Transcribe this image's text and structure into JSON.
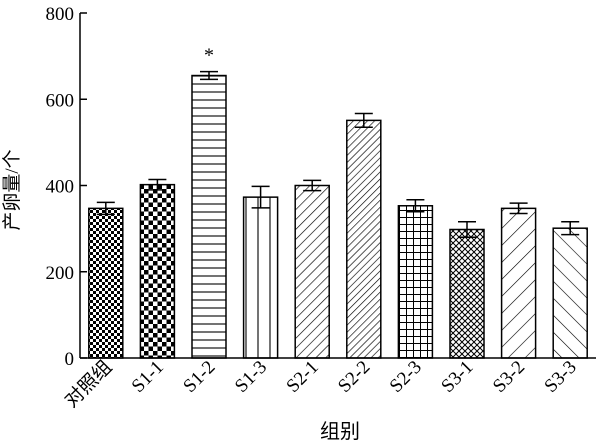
{
  "chart_data": {
    "type": "bar",
    "xlabel": "组别",
    "ylabel": "产卵量/个",
    "ylim": [
      0,
      800
    ],
    "yticks": [
      0,
      200,
      400,
      600,
      800
    ],
    "grid": false,
    "categories": [
      "对照组",
      "S1-1",
      "S1-2",
      "S1-3",
      "S2-1",
      "S2-2",
      "S2-3",
      "S3-1",
      "S3-2",
      "S3-3"
    ],
    "values": [
      347,
      402,
      655,
      373,
      400,
      551,
      353,
      298,
      347,
      301
    ],
    "errors": [
      14,
      12,
      9,
      25,
      12,
      16,
      14,
      18,
      12,
      15
    ],
    "annotations": [
      {
        "category": "S1-2",
        "text": "*"
      }
    ],
    "patterns": [
      "dense-check",
      "checkerboard",
      "horizontal-lines",
      "vertical-lines",
      "diagonal-down",
      "diagonal-down-dense",
      "grid",
      "diamond-mesh",
      "diagonal-down-sparse",
      "diagonal-up-sparse"
    ]
  }
}
